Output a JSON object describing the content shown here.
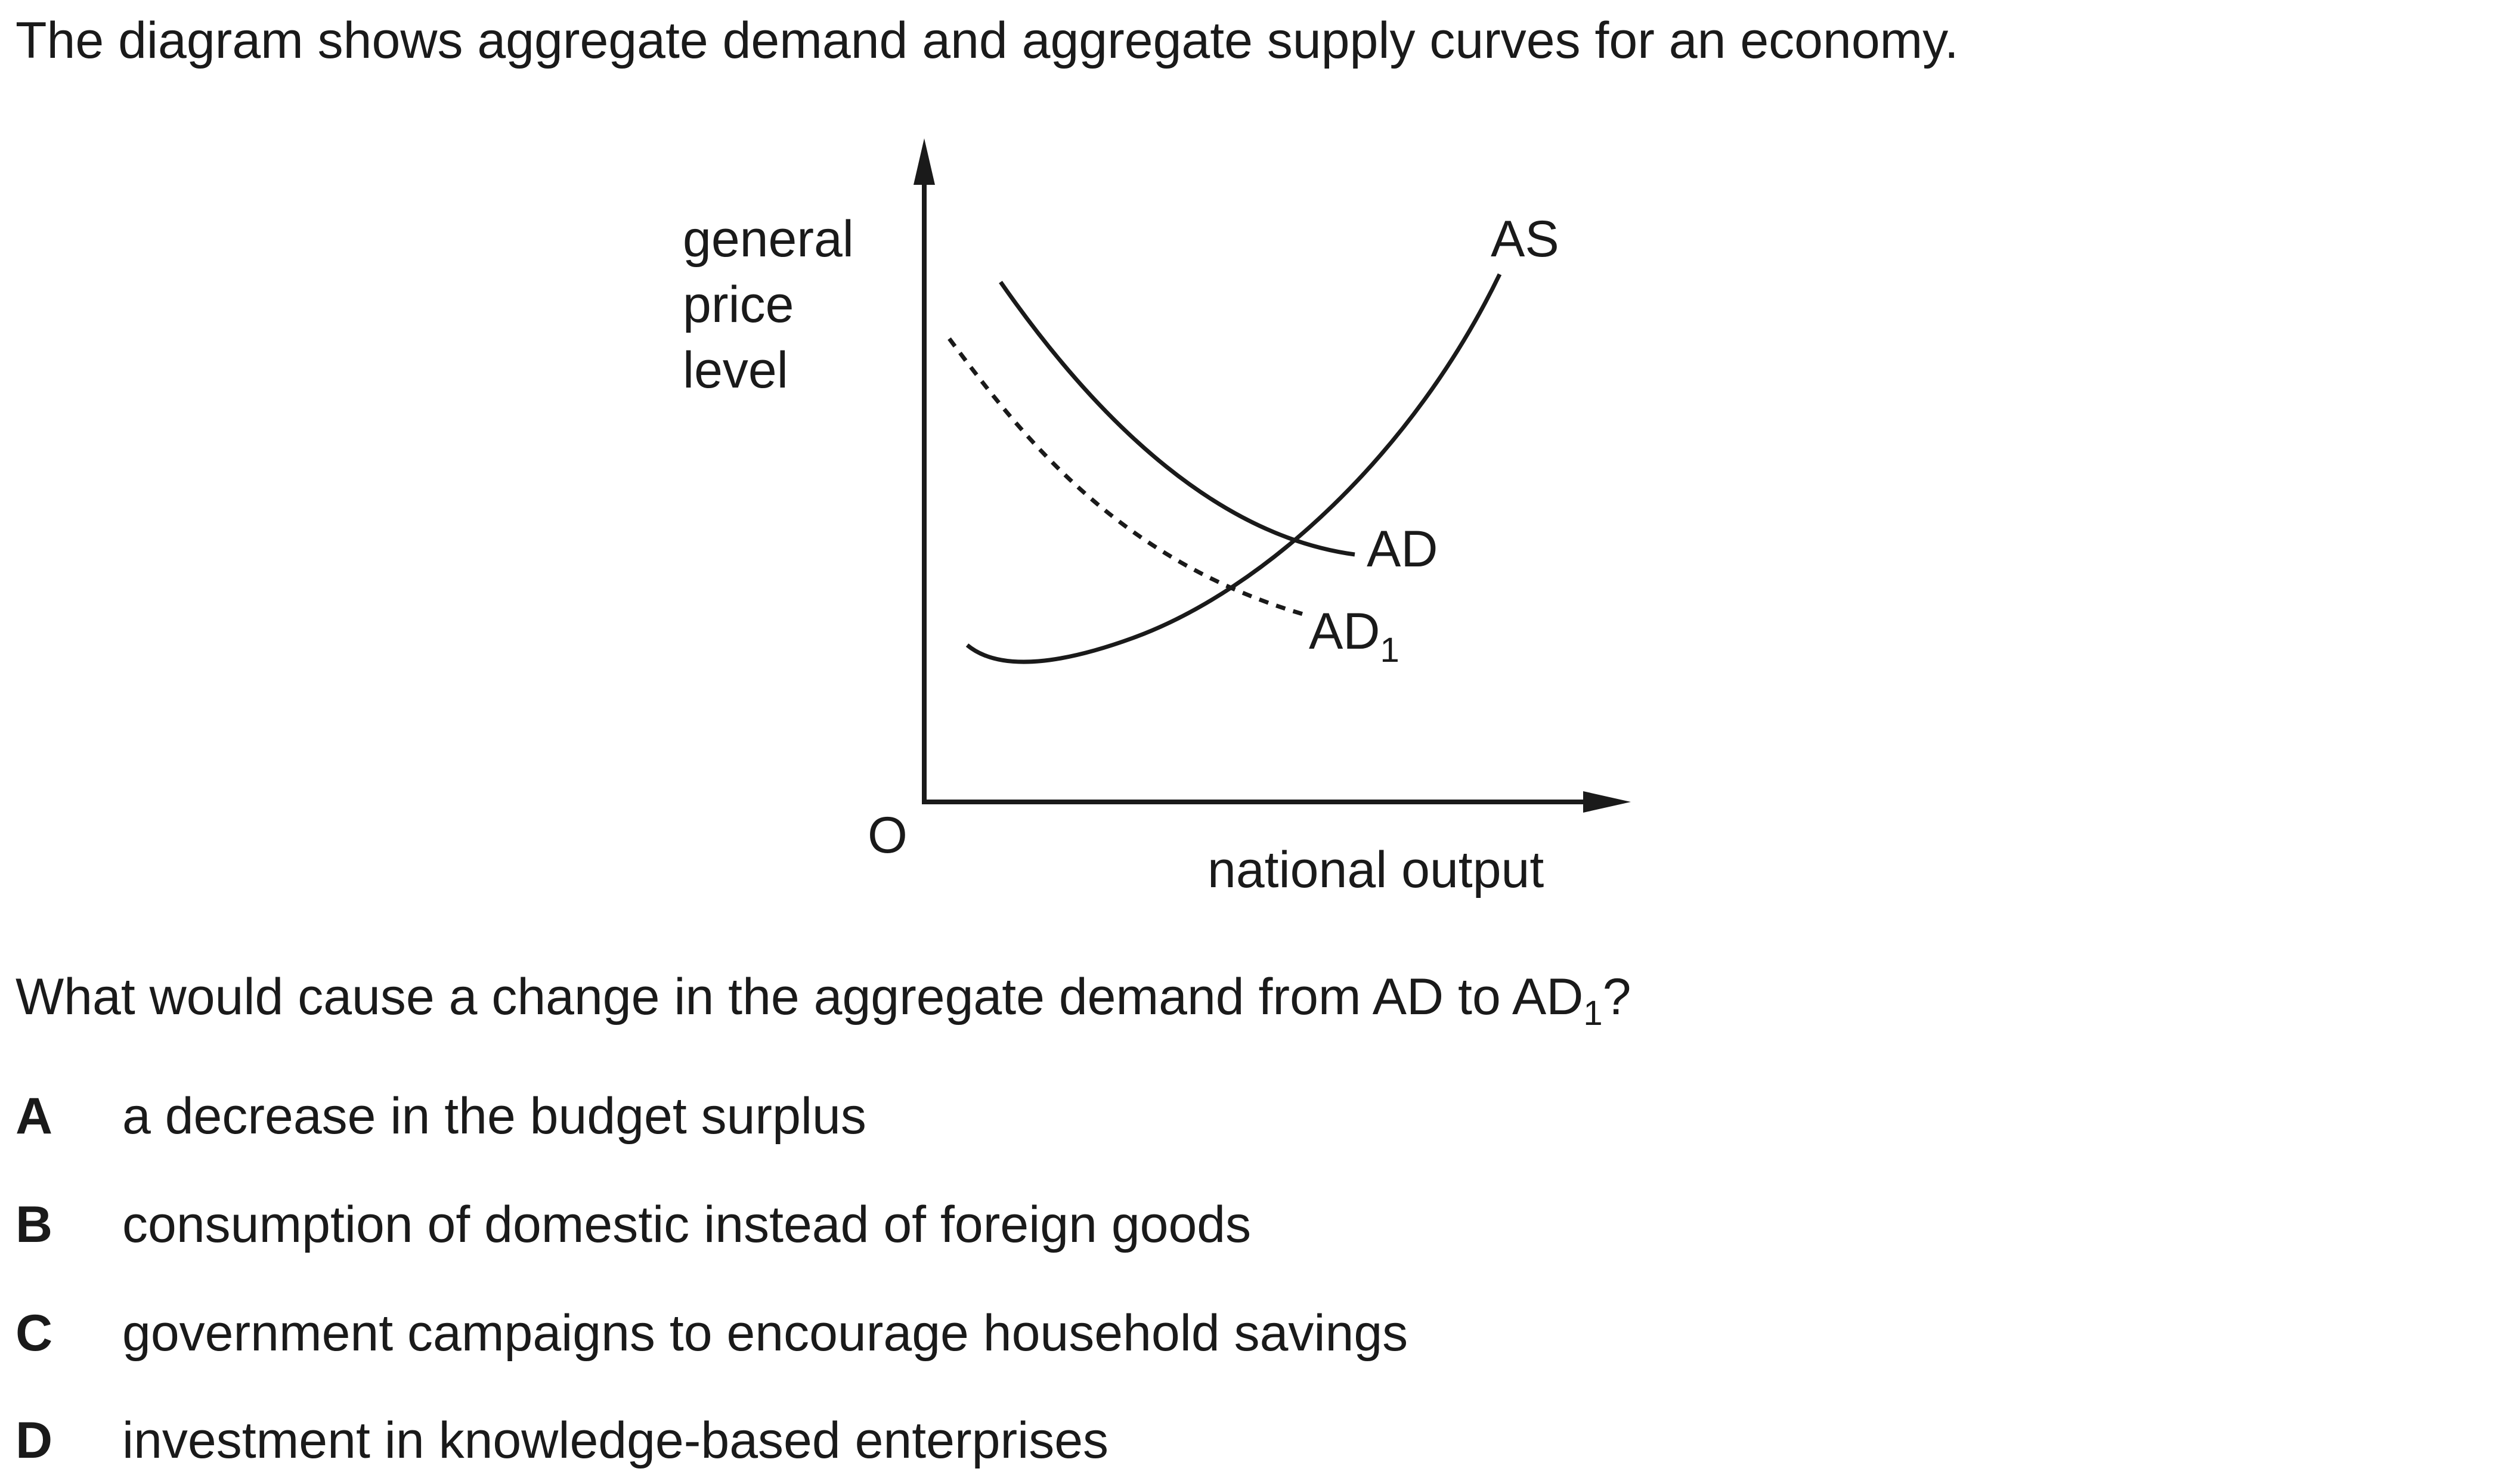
{
  "intro_text": "The diagram shows aggregate demand and aggregate supply curves for an economy.",
  "diagram": {
    "y_axis_label": [
      "general",
      "price",
      "level"
    ],
    "x_axis_label": "national output",
    "origin_label": "O",
    "curves": {
      "as": {
        "label": "AS",
        "style": "solid"
      },
      "ad": {
        "label": "AD",
        "style": "solid"
      },
      "ad1": {
        "label": "AD",
        "subscript": "1",
        "style": "dashed"
      }
    },
    "line_color": "#1a1a1a"
  },
  "question": {
    "text": "What would cause a change in the aggregate demand from AD to AD",
    "subscript": "1",
    "suffix": "?"
  },
  "options": [
    {
      "letter": "A",
      "text": "a decrease in the budget surplus"
    },
    {
      "letter": "B",
      "text": "consumption of domestic instead of foreign goods"
    },
    {
      "letter": "C",
      "text": "government campaigns to encourage household savings"
    },
    {
      "letter": "D",
      "text": "investment in knowledge-based enterprises"
    }
  ]
}
